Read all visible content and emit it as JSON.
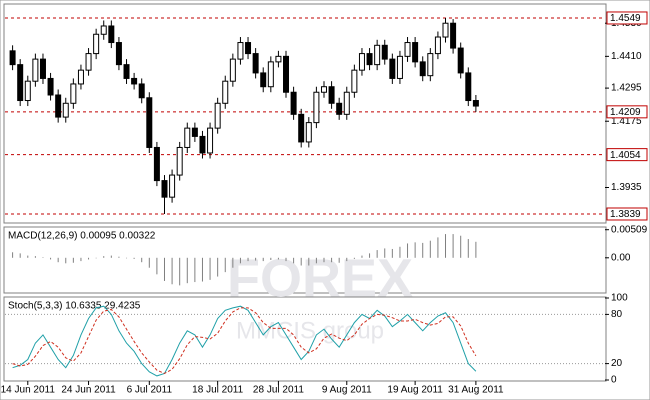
{
  "chart_data": [
    {
      "type": "candlestick",
      "watermark": [
        "FOREX",
        "MMCIS group"
      ],
      "xlim": [
        -1,
        78
      ],
      "ylim": [
        1.381,
        1.4596
      ],
      "yticks": [
        {
          "value": 1.453,
          "label": "1.4530"
        },
        {
          "value": 1.441,
          "label": "1.4410"
        },
        {
          "value": 1.4295,
          "label": "1.4295"
        },
        {
          "value": 1.4175,
          "label": "1.4175"
        },
        {
          "value": 1.3935,
          "label": "1.3935"
        }
      ],
      "levels": [
        1.4549,
        1.4209,
        1.4054,
        1.3839
      ],
      "level_color": "#c00000",
      "up_color": "#ffffff",
      "down_color": "#000000",
      "open": [
        1.443,
        1.438,
        1.425,
        1.432,
        1.44,
        1.433,
        1.427,
        1.419,
        1.424,
        1.431,
        1.436,
        1.442,
        1.449,
        1.452,
        1.446,
        1.438,
        1.433,
        1.431,
        1.426,
        1.408,
        1.396,
        1.39,
        1.398,
        1.408,
        1.415,
        1.412,
        1.406,
        1.415,
        1.424,
        1.432,
        1.44,
        1.446,
        1.442,
        1.435,
        1.43,
        1.439,
        1.441,
        1.428,
        1.42,
        1.41,
        1.417,
        1.428,
        1.43,
        1.424,
        1.42,
        1.428,
        1.436,
        1.442,
        1.438,
        1.445,
        1.44,
        1.433,
        1.441,
        1.446,
        1.439,
        1.434,
        1.442,
        1.448,
        1.453,
        1.444,
        1.435,
        1.425
      ],
      "high": [
        1.445,
        1.44,
        1.434,
        1.442,
        1.442,
        1.435,
        1.429,
        1.426,
        1.433,
        1.438,
        1.444,
        1.451,
        1.454,
        1.454,
        1.448,
        1.44,
        1.435,
        1.433,
        1.428,
        1.41,
        1.398,
        1.4,
        1.41,
        1.417,
        1.417,
        1.414,
        1.417,
        1.426,
        1.434,
        1.442,
        1.448,
        1.448,
        1.444,
        1.437,
        1.441,
        1.443,
        1.443,
        1.43,
        1.422,
        1.419,
        1.43,
        1.432,
        1.432,
        1.426,
        1.43,
        1.438,
        1.444,
        1.444,
        1.447,
        1.447,
        1.442,
        1.443,
        1.448,
        1.448,
        1.441,
        1.444,
        1.45,
        1.4549,
        1.4545,
        1.446,
        1.437,
        1.427
      ],
      "low": [
        1.436,
        1.423,
        1.423,
        1.43,
        1.431,
        1.425,
        1.417,
        1.417,
        1.422,
        1.429,
        1.434,
        1.44,
        1.447,
        1.444,
        1.436,
        1.431,
        1.429,
        1.424,
        1.406,
        1.394,
        1.3839,
        1.388,
        1.396,
        1.406,
        1.41,
        1.404,
        1.404,
        1.413,
        1.422,
        1.43,
        1.438,
        1.44,
        1.433,
        1.428,
        1.428,
        1.437,
        1.426,
        1.418,
        1.408,
        1.408,
        1.415,
        1.426,
        1.422,
        1.418,
        1.418,
        1.426,
        1.434,
        1.436,
        1.436,
        1.438,
        1.431,
        1.431,
        1.439,
        1.437,
        1.432,
        1.432,
        1.44,
        1.446,
        1.442,
        1.433,
        1.423,
        1.4209
      ],
      "close": [
        1.438,
        1.425,
        1.432,
        1.44,
        1.433,
        1.427,
        1.419,
        1.424,
        1.431,
        1.436,
        1.442,
        1.449,
        1.452,
        1.446,
        1.438,
        1.433,
        1.431,
        1.426,
        1.408,
        1.396,
        1.39,
        1.398,
        1.408,
        1.415,
        1.412,
        1.406,
        1.415,
        1.424,
        1.432,
        1.44,
        1.446,
        1.442,
        1.435,
        1.43,
        1.439,
        1.441,
        1.428,
        1.42,
        1.41,
        1.417,
        1.428,
        1.43,
        1.424,
        1.42,
        1.428,
        1.436,
        1.442,
        1.438,
        1.445,
        1.44,
        1.433,
        1.441,
        1.446,
        1.439,
        1.434,
        1.442,
        1.448,
        1.453,
        1.444,
        1.435,
        1.425,
        1.423
      ]
    },
    {
      "type": "bar",
      "title": "MACD(12,26,9) 0.00095 0.00322",
      "xlim": [
        -1,
        78
      ],
      "ylim": [
        -0.0062,
        0.0054
      ],
      "yticks": [
        0.00509,
        {
          "value": 0,
          "label": "0.00"
        }
      ],
      "color": "#808080",
      "values": [
        0.001,
        0.0008,
        0.0004,
        0.0003,
        0.0001,
        -0.0003,
        -0.0008,
        -0.001,
        -0.0009,
        -0.0006,
        -0.0003,
        0.0,
        0.0003,
        0.0004,
        0.0002,
        0.0,
        -0.0002,
        -0.0008,
        -0.0018,
        -0.003,
        -0.0042,
        -0.0048,
        -0.005,
        -0.0046,
        -0.0044,
        -0.0043,
        -0.004,
        -0.0034,
        -0.0026,
        -0.0018,
        -0.001,
        -0.0006,
        -0.0005,
        -0.0006,
        -0.0004,
        -0.0003,
        -0.0006,
        -0.001,
        -0.0014,
        -0.0014,
        -0.001,
        -0.0008,
        -0.0008,
        -0.0009,
        -0.0006,
        -0.0002,
        0.0004,
        0.0008,
        0.0014,
        0.0017,
        0.0016,
        0.002,
        0.0026,
        0.0028,
        0.0027,
        0.0031,
        0.0037,
        0.0043,
        0.0043,
        0.004,
        0.0034,
        0.0029
      ]
    },
    {
      "type": "line",
      "title": "Stoch(5,3,3) 10.6335 29.4235",
      "xlim": [
        -1,
        78
      ],
      "ylim": [
        0,
        100
      ],
      "yticks": [
        100,
        80,
        20,
        0
      ],
      "grid": true,
      "xticks": [
        {
          "value": 2,
          "label": "14 Jun 2011"
        },
        {
          "value": 10,
          "label": "24 Jun 2011"
        },
        {
          "value": 18,
          "label": "6 Jul 2011"
        },
        {
          "value": 27,
          "label": "18 Jul 2011"
        },
        {
          "value": 35,
          "label": "28 Jul 2011"
        },
        {
          "value": 44,
          "label": "9 Aug 2011"
        },
        {
          "value": 53,
          "label": "19 Aug 2011"
        },
        {
          "value": 61,
          "label": "31 Aug 2011"
        }
      ],
      "series": [
        {
          "color": "#20a0a8",
          "dash": false,
          "values": [
            15,
            18,
            25,
            45,
            55,
            40,
            25,
            15,
            30,
            55,
            75,
            88,
            90,
            80,
            60,
            45,
            35,
            20,
            10,
            5,
            8,
            25,
            45,
            60,
            55,
            40,
            55,
            75,
            85,
            88,
            90,
            85,
            70,
            55,
            65,
            70,
            55,
            40,
            25,
            35,
            55,
            62,
            50,
            40,
            55,
            70,
            80,
            75,
            85,
            78,
            65,
            72,
            80,
            70,
            60,
            70,
            78,
            82,
            70,
            45,
            20,
            10.6335
          ]
        },
        {
          "color": "#d03020",
          "dash": true,
          "values": [
            20,
            17,
            19,
            29,
            42,
            47,
            40,
            27,
            23,
            33,
            53,
            73,
            84,
            86,
            77,
            62,
            47,
            33,
            22,
            12,
            8,
            13,
            26,
            43,
            53,
            52,
            50,
            57,
            72,
            83,
            88,
            88,
            82,
            70,
            63,
            63,
            63,
            55,
            40,
            33,
            38,
            51,
            56,
            51,
            48,
            55,
            68,
            75,
            80,
            79,
            76,
            72,
            72,
            74,
            70,
            67,
            69,
            77,
            77,
            66,
            45,
            29.4235
          ]
        }
      ]
    }
  ]
}
